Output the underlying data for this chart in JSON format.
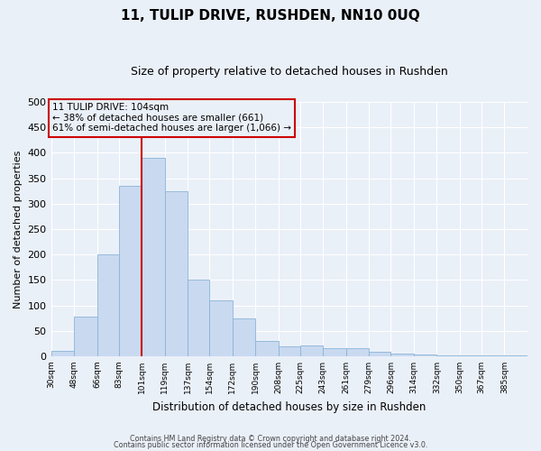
{
  "title": "11, TULIP DRIVE, RUSHDEN, NN10 0UQ",
  "subtitle": "Size of property relative to detached houses in Rushden",
  "xlabel": "Distribution of detached houses by size in Rushden",
  "ylabel": "Number of detached properties",
  "bin_labels": [
    "30sqm",
    "48sqm",
    "66sqm",
    "83sqm",
    "101sqm",
    "119sqm",
    "137sqm",
    "154sqm",
    "172sqm",
    "190sqm",
    "208sqm",
    "225sqm",
    "243sqm",
    "261sqm",
    "279sqm",
    "296sqm",
    "314sqm",
    "332sqm",
    "350sqm",
    "367sqm",
    "385sqm"
  ],
  "bar_values": [
    10,
    78,
    200,
    335,
    390,
    325,
    150,
    110,
    75,
    30,
    20,
    22,
    15,
    15,
    8,
    5,
    3,
    1,
    1,
    1,
    1
  ],
  "bin_edges": [
    30,
    48,
    66,
    83,
    101,
    119,
    137,
    154,
    172,
    190,
    208,
    225,
    243,
    261,
    279,
    296,
    314,
    332,
    350,
    367,
    385,
    403
  ],
  "bar_color": "#c9d9f0",
  "bar_edgecolor": "#8ab4d8",
  "red_line_x": 101,
  "vline_color": "#cc0000",
  "annotation_text_line1": "11 TULIP DRIVE: 104sqm",
  "annotation_text_line2": "← 38% of detached houses are smaller (661)",
  "annotation_text_line3": "61% of semi-detached houses are larger (1,066) →",
  "annotation_box_color": "#cc0000",
  "ylim": [
    0,
    500
  ],
  "yticks": [
    0,
    50,
    100,
    150,
    200,
    250,
    300,
    350,
    400,
    450,
    500
  ],
  "bg_color": "#eaf0f8",
  "grid_color": "#ffffff",
  "footer_line1": "Contains HM Land Registry data © Crown copyright and database right 2024.",
  "footer_line2": "Contains public sector information licensed under the Open Government Licence v3.0."
}
